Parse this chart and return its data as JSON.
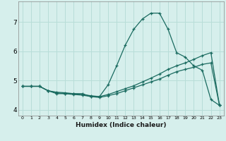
{
  "xlabel": "Humidex (Indice chaleur)",
  "x_ticks": [
    0,
    1,
    2,
    3,
    4,
    5,
    6,
    7,
    8,
    9,
    10,
    11,
    12,
    13,
    14,
    15,
    16,
    17,
    18,
    19,
    20,
    21,
    22,
    23
  ],
  "xlim": [
    -0.5,
    23.5
  ],
  "ylim": [
    3.8,
    7.7
  ],
  "y_ticks": [
    4,
    5,
    6,
    7
  ],
  "bg_color": "#d6efec",
  "grid_color": "#b8ddd8",
  "line_color": "#1a6b60",
  "line1_x": [
    0,
    1,
    2,
    3,
    4,
    5,
    6,
    7,
    8,
    9,
    10,
    11,
    12,
    13,
    14,
    15,
    16,
    17,
    18,
    19,
    20,
    21,
    22,
    23
  ],
  "line1_y": [
    4.8,
    4.8,
    4.8,
    4.65,
    4.55,
    4.55,
    4.55,
    4.55,
    4.45,
    4.45,
    4.85,
    5.5,
    6.2,
    6.75,
    7.1,
    7.3,
    7.3,
    6.75,
    5.95,
    5.8,
    5.5,
    5.35,
    4.35,
    4.15
  ],
  "line2_x": [
    0,
    1,
    2,
    3,
    4,
    5,
    6,
    7,
    8,
    9,
    10,
    11,
    12,
    13,
    14,
    15,
    16,
    17,
    18,
    19,
    20,
    21,
    22,
    23
  ],
  "line2_y": [
    4.8,
    4.8,
    4.8,
    4.65,
    4.6,
    4.58,
    4.55,
    4.52,
    4.48,
    4.45,
    4.52,
    4.62,
    4.72,
    4.82,
    4.95,
    5.08,
    5.22,
    5.38,
    5.5,
    5.6,
    5.72,
    5.85,
    5.95,
    4.15
  ],
  "line3_x": [
    0,
    1,
    2,
    3,
    4,
    5,
    6,
    7,
    8,
    9,
    10,
    11,
    12,
    13,
    14,
    15,
    16,
    17,
    18,
    19,
    20,
    21,
    22,
    23
  ],
  "line3_y": [
    4.8,
    4.8,
    4.8,
    4.65,
    4.58,
    4.55,
    4.52,
    4.5,
    4.45,
    4.42,
    4.48,
    4.55,
    4.65,
    4.75,
    4.85,
    4.95,
    5.05,
    5.18,
    5.3,
    5.38,
    5.45,
    5.55,
    5.6,
    4.15
  ]
}
